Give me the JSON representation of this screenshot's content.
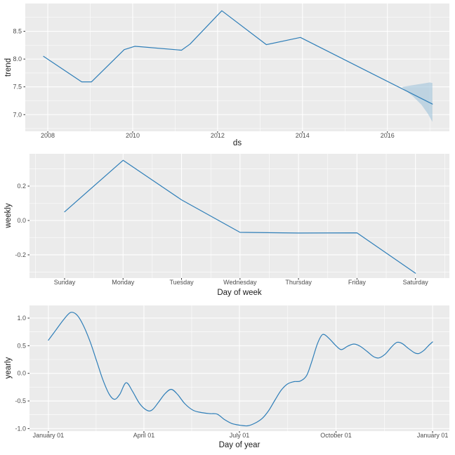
{
  "figure": {
    "background": "#FFFFFF",
    "panel_background": "#EBEBEB",
    "grid_color": "#FFFFFF",
    "tick_text_color": "#4D4D4D",
    "tick_mark_color": "#333333",
    "axis_title_color": "#1A1A1A",
    "line_color": "#2E7EB8",
    "ribbon_color": "#99BFD9",
    "legend": "none",
    "title": ""
  },
  "chart_data": [
    {
      "type": "line",
      "name": "trend",
      "xlabel": "ds",
      "ylabel": "trend",
      "xlim": [
        2007.47,
        2017.46
      ],
      "ylim": [
        6.7,
        9.0
      ],
      "grid": true,
      "smooth": false,
      "x_ticks": [
        {
          "v": 2008,
          "label": "2008"
        },
        {
          "v": 2010,
          "label": "2010"
        },
        {
          "v": 2012,
          "label": "2012"
        },
        {
          "v": 2014,
          "label": "2014"
        },
        {
          "v": 2016,
          "label": "2016"
        }
      ],
      "y_ticks": [
        {
          "v": 7.0,
          "label": "7.0"
        },
        {
          "v": 7.5,
          "label": "7.5"
        },
        {
          "v": 8.0,
          "label": "8.0"
        },
        {
          "v": 8.5,
          "label": "8.5"
        }
      ],
      "x_minor": [
        2009,
        2011,
        2013,
        2015,
        2017
      ],
      "y_minor": [
        6.75,
        7.25,
        7.75,
        8.25,
        8.75
      ],
      "series": [
        {
          "name": "trend",
          "x": [
            2007.9,
            2008.8,
            2009.03,
            2009.8,
            2010.05,
            2011.15,
            2011.35,
            2012.1,
            2013.15,
            2013.95,
            2017.06
          ],
          "y": [
            8.05,
            7.59,
            7.59,
            8.17,
            8.23,
            8.16,
            8.27,
            8.87,
            8.26,
            8.39,
            7.19
          ]
        }
      ],
      "ribbon": {
        "x": [
          2016.35,
          2016.6,
          2016.85,
          2017.0,
          2017.06,
          2017.06,
          2016.95,
          2016.8,
          2016.6,
          2016.45,
          2016.35
        ],
        "y": [
          7.5,
          7.53,
          7.56,
          7.58,
          7.57,
          6.87,
          7.02,
          7.18,
          7.33,
          7.42,
          7.49
        ]
      }
    },
    {
      "type": "line",
      "name": "weekly",
      "xlabel": "Day of week",
      "ylabel": "weekly",
      "xlim": [
        -0.6,
        6.58
      ],
      "ylim": [
        -0.335,
        0.388
      ],
      "grid": true,
      "smooth": false,
      "x_ticks": [
        {
          "v": 0,
          "label": "Sunday"
        },
        {
          "v": 1,
          "label": "Monday"
        },
        {
          "v": 2,
          "label": "Tuesday"
        },
        {
          "v": 3,
          "label": "Wednesday"
        },
        {
          "v": 4,
          "label": "Thursday"
        },
        {
          "v": 5,
          "label": "Friday"
        },
        {
          "v": 6,
          "label": "Saturday"
        }
      ],
      "y_ticks": [
        {
          "v": -0.2,
          "label": "-0.2"
        },
        {
          "v": 0.0,
          "label": "0.0"
        },
        {
          "v": 0.2,
          "label": "0.2"
        }
      ],
      "x_minor": [
        -0.5,
        0.5,
        1.5,
        2.5,
        3.5,
        4.5,
        5.5,
        6.5
      ],
      "y_minor": [
        -0.3,
        -0.1,
        0.1,
        0.3
      ],
      "series": [
        {
          "name": "weekly",
          "x": [
            0,
            1,
            2,
            3,
            4,
            5,
            6
          ],
          "y": [
            0.05,
            0.35,
            0.12,
            -0.069,
            -0.073,
            -0.072,
            -0.307
          ]
        }
      ],
      "ribbon": null
    },
    {
      "type": "line",
      "name": "yearly",
      "xlabel": "Day of year",
      "ylabel": "yearly",
      "xlim": [
        -18,
        382
      ],
      "ylim": [
        -1.046,
        1.229
      ],
      "grid": true,
      "smooth": true,
      "x_ticks": [
        {
          "v": 0,
          "label": "January 01"
        },
        {
          "v": 91,
          "label": "April 01"
        },
        {
          "v": 182,
          "label": "July 01"
        },
        {
          "v": 274,
          "label": "October 01"
        },
        {
          "v": 366,
          "label": "January 01"
        }
      ],
      "y_ticks": [
        {
          "v": -1.0,
          "label": "-1.0"
        },
        {
          "v": -0.5,
          "label": "-0.5"
        },
        {
          "v": 0.0,
          "label": "0.0"
        },
        {
          "v": 0.5,
          "label": "0.5"
        },
        {
          "v": 1.0,
          "label": "1.0"
        }
      ],
      "x_minor": [
        45.5,
        136.5,
        228,
        320
      ],
      "y_minor": [
        -0.75,
        -0.25,
        0.25,
        0.75
      ],
      "series": [
        {
          "name": "yearly",
          "x": [
            0,
            7,
            14,
            21,
            27,
            33,
            40,
            46,
            52,
            58,
            63,
            68,
            74,
            80,
            87,
            94,
            99,
            105,
            111,
            117,
            123,
            130,
            138,
            146,
            154,
            161,
            168,
            175,
            183,
            190,
            197,
            204,
            210,
            216,
            222,
            228,
            234,
            240,
            246,
            251,
            256,
            260,
            263,
            268,
            274,
            279,
            285,
            291,
            297,
            304,
            310,
            315,
            321,
            327,
            332,
            337,
            343,
            349,
            353,
            358,
            362,
            366
          ],
          "y": [
            0.6,
            0.78,
            0.96,
            1.1,
            1.06,
            0.88,
            0.56,
            0.22,
            -0.12,
            -0.38,
            -0.47,
            -0.38,
            -0.17,
            -0.32,
            -0.55,
            -0.67,
            -0.66,
            -0.52,
            -0.37,
            -0.29,
            -0.38,
            -0.55,
            -0.67,
            -0.71,
            -0.73,
            -0.74,
            -0.84,
            -0.91,
            -0.94,
            -0.95,
            -0.9,
            -0.81,
            -0.67,
            -0.48,
            -0.3,
            -0.19,
            -0.15,
            -0.14,
            -0.04,
            0.22,
            0.52,
            0.68,
            0.7,
            0.62,
            0.5,
            0.43,
            0.49,
            0.53,
            0.49,
            0.39,
            0.3,
            0.28,
            0.35,
            0.48,
            0.56,
            0.54,
            0.45,
            0.37,
            0.36,
            0.42,
            0.5,
            0.57
          ]
        }
      ],
      "ribbon": null
    }
  ]
}
